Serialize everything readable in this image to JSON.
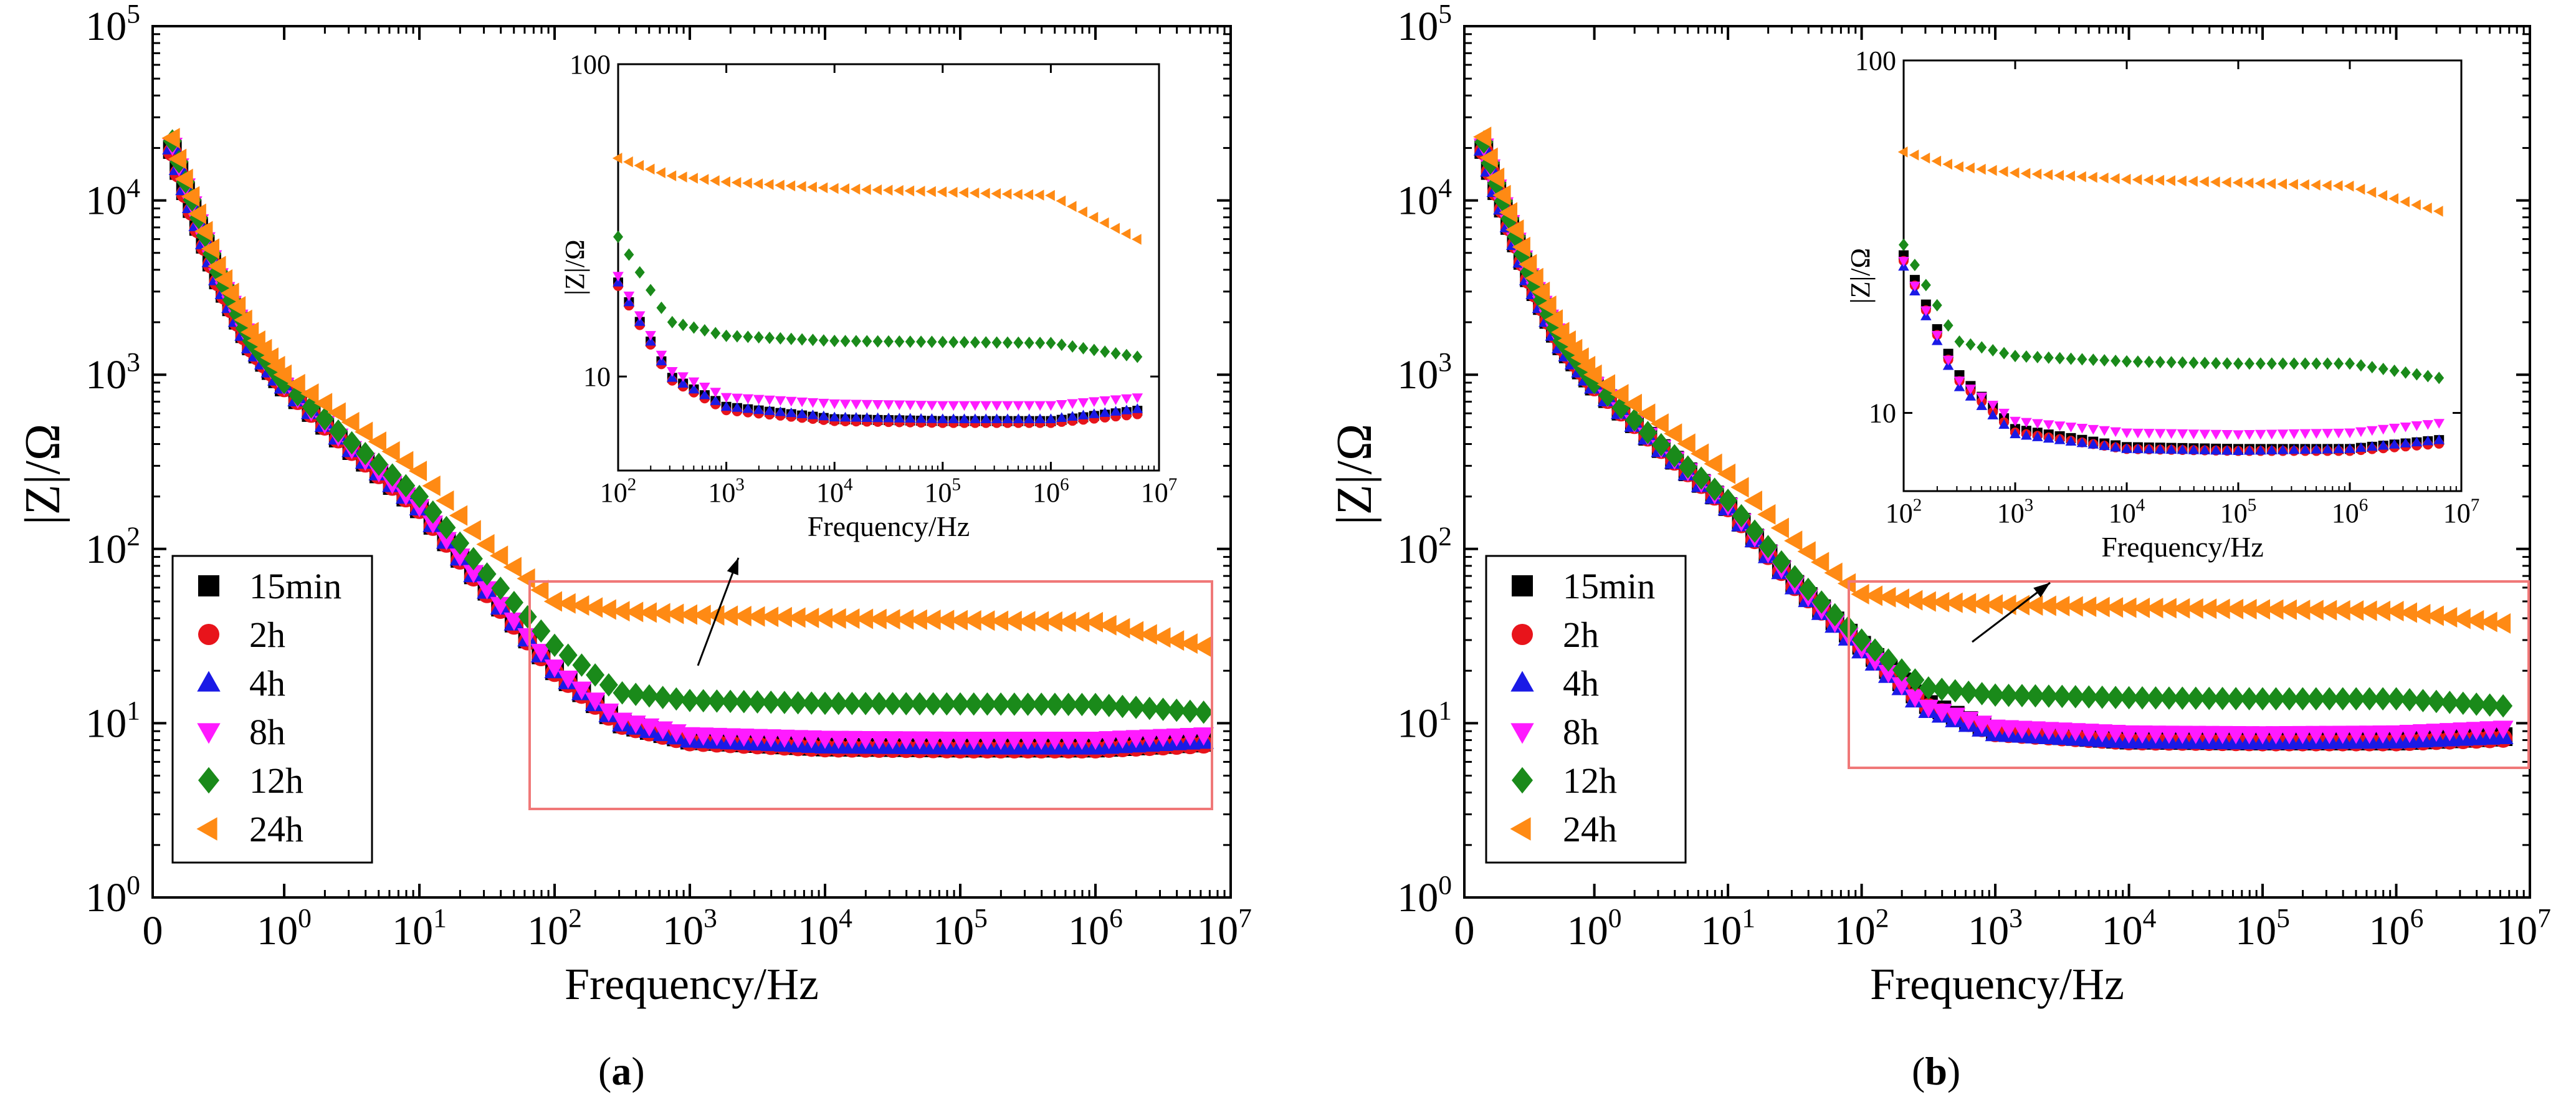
{
  "chart_data": [
    {
      "panel_label": "a",
      "type": "scatter",
      "xlabel": "Frequency/Hz",
      "ylabel": "|Z|/Ω",
      "x_ticks": [
        "0",
        "10^0",
        "10^1",
        "10^2",
        "10^3",
        "10^4",
        "10^5",
        "10^6",
        "10^7"
      ],
      "y_ticks": [
        "10^0",
        "10^1",
        "10^2",
        "10^3",
        "10^4",
        "10^5"
      ],
      "ylim": [
        1,
        100000
      ],
      "yscale": "log",
      "xscale": "log (with 0 at origin)",
      "legend_position": "bottom-left",
      "series": [
        {
          "name": "15min",
          "color": "#000000",
          "marker": "square",
          "points": [
            [
              0.01,
              45000
            ],
            [
              0.03,
              12000
            ],
            [
              0.1,
              3500
            ],
            [
              0.3,
              1500
            ],
            [
              1,
              850
            ],
            [
              3,
              380
            ],
            [
              10,
              170
            ],
            [
              30,
              60
            ],
            [
              100,
              20
            ],
            [
              300,
              10
            ],
            [
              1000,
              8
            ],
            [
              10000,
              7.3
            ],
            [
              100000,
              7.2
            ],
            [
              1000000,
              7.2
            ],
            [
              7000000,
              7.8
            ]
          ]
        },
        {
          "name": "2h",
          "color": "#e8141b",
          "marker": "circle",
          "points": [
            [
              0.01,
              44000
            ],
            [
              0.03,
              11500
            ],
            [
              0.1,
              3400
            ],
            [
              0.3,
              1450
            ],
            [
              1,
              840
            ],
            [
              3,
              375
            ],
            [
              10,
              168
            ],
            [
              30,
              58
            ],
            [
              100,
              19.5
            ],
            [
              300,
              9.8
            ],
            [
              1000,
              7.8
            ],
            [
              10000,
              7.2
            ],
            [
              100000,
              7.1
            ],
            [
              1000000,
              7.1
            ],
            [
              7000000,
              7.6
            ]
          ]
        },
        {
          "name": "4h",
          "color": "#1a1ae6",
          "marker": "triangle-up",
          "points": [
            [
              0.01,
              46000
            ],
            [
              0.03,
              12500
            ],
            [
              0.1,
              3600
            ],
            [
              0.3,
              1500
            ],
            [
              1,
              860
            ],
            [
              3,
              385
            ],
            [
              10,
              172
            ],
            [
              30,
              60
            ],
            [
              100,
              20
            ],
            [
              300,
              10
            ],
            [
              1000,
              8
            ],
            [
              10000,
              7.4
            ],
            [
              100000,
              7.3
            ],
            [
              1000000,
              7.3
            ],
            [
              7000000,
              7.9
            ]
          ]
        },
        {
          "name": "8h",
          "color": "#ff1aff",
          "marker": "triangle-down",
          "points": [
            [
              0.01,
              47000
            ],
            [
              0.03,
              12800
            ],
            [
              0.1,
              3700
            ],
            [
              0.3,
              1550
            ],
            [
              1,
              870
            ],
            [
              3,
              390
            ],
            [
              10,
              175
            ],
            [
              30,
              62
            ],
            [
              100,
              21
            ],
            [
              300,
              10.5
            ],
            [
              1000,
              8.6
            ],
            [
              10000,
              8.2
            ],
            [
              100000,
              8.1
            ],
            [
              1000000,
              8.1
            ],
            [
              7000000,
              8.6
            ]
          ]
        },
        {
          "name": "12h",
          "color": "#1a8a1a",
          "marker": "diamond",
          "points": [
            [
              0.01,
              50000
            ],
            [
              0.03,
              13500
            ],
            [
              0.1,
              3900
            ],
            [
              0.3,
              1600
            ],
            [
              1,
              900
            ],
            [
              3,
              420
            ],
            [
              10,
              200
            ],
            [
              30,
              75
            ],
            [
              100,
              28
            ],
            [
              300,
              15
            ],
            [
              1000,
              13.5
            ],
            [
              10000,
              13
            ],
            [
              100000,
              12.9
            ],
            [
              1000000,
              12.8
            ],
            [
              7000000,
              11.5
            ]
          ]
        },
        {
          "name": "24h",
          "color": "#ff8a14",
          "marker": "triangle-left",
          "points": [
            [
              0.01,
              52000
            ],
            [
              0.03,
              14000
            ],
            [
              0.1,
              4200
            ],
            [
              0.3,
              1800
            ],
            [
              1,
              1000
            ],
            [
              3,
              550
            ],
            [
              10,
              280
            ],
            [
              30,
              110
            ],
            [
              100,
              50
            ],
            [
              300,
              44
            ],
            [
              1000,
              42
            ],
            [
              10000,
              40
            ],
            [
              100000,
              39
            ],
            [
              1000000,
              38
            ],
            [
              7000000,
              27
            ]
          ]
        }
      ],
      "inset": {
        "xlabel": "Frequency/Hz",
        "ylabel": "|Z|/Ω",
        "x_ticks": [
          "10^2",
          "10^3",
          "10^4",
          "10^5",
          "10^6",
          "10^7"
        ],
        "y_ticks": [
          "10",
          "100"
        ],
        "xlim": [
          100,
          10000000
        ],
        "ylim": [
          5,
          100
        ]
      }
    },
    {
      "panel_label": "b",
      "type": "scatter",
      "xlabel": "Frequency/Hz",
      "ylabel": "|Z|/Ω",
      "x_ticks": [
        "0",
        "10^0",
        "10^1",
        "10^2",
        "10^3",
        "10^4",
        "10^5",
        "10^6",
        "10^7"
      ],
      "y_ticks": [
        "10^0",
        "10^1",
        "10^2",
        "10^3",
        "10^4",
        "10^5"
      ],
      "ylim": [
        1,
        100000
      ],
      "yscale": "log",
      "xscale": "log (with 0 at origin)",
      "legend_position": "bottom-left",
      "series": [
        {
          "name": "15min",
          "color": "#000000",
          "marker": "square",
          "points": [
            [
              0.01,
              45000
            ],
            [
              0.03,
              12000
            ],
            [
              0.1,
              3600
            ],
            [
              0.3,
              1500
            ],
            [
              1,
              860
            ],
            [
              3,
              390
            ],
            [
              10,
              175
            ],
            [
              30,
              65
            ],
            [
              100,
              28
            ],
            [
              300,
              13
            ],
            [
              1000,
              9
            ],
            [
              10000,
              8
            ],
            [
              100000,
              7.9
            ],
            [
              1000000,
              7.9
            ],
            [
              7000000,
              8.4
            ]
          ]
        },
        {
          "name": "2h",
          "color": "#e8141b",
          "marker": "circle",
          "points": [
            [
              0.01,
              44000
            ],
            [
              0.03,
              11800
            ],
            [
              0.1,
              3500
            ],
            [
              0.3,
              1480
            ],
            [
              1,
              850
            ],
            [
              3,
              385
            ],
            [
              10,
              172
            ],
            [
              30,
              63
            ],
            [
              100,
              27
            ],
            [
              300,
              12.5
            ],
            [
              1000,
              8.8
            ],
            [
              10000,
              7.9
            ],
            [
              100000,
              7.8
            ],
            [
              1000000,
              7.8
            ],
            [
              7000000,
              8.2
            ]
          ]
        },
        {
          "name": "4h",
          "color": "#1a1ae6",
          "marker": "triangle-up",
          "points": [
            [
              0.01,
              46000
            ],
            [
              0.03,
              12200
            ],
            [
              0.1,
              3600
            ],
            [
              0.3,
              1500
            ],
            [
              1,
              860
            ],
            [
              3,
              385
            ],
            [
              10,
              172
            ],
            [
              30,
              63
            ],
            [
              100,
              26
            ],
            [
              300,
              12
            ],
            [
              1000,
              8.7
            ],
            [
              10000,
              7.9
            ],
            [
              100000,
              7.8
            ],
            [
              1000000,
              7.9
            ],
            [
              7000000,
              8.4
            ]
          ]
        },
        {
          "name": "8h",
          "color": "#ff1aff",
          "marker": "triangle-down",
          "points": [
            [
              0.01,
              47000
            ],
            [
              0.03,
              12600
            ],
            [
              0.1,
              3700
            ],
            [
              0.3,
              1550
            ],
            [
              1,
              880
            ],
            [
              3,
              395
            ],
            [
              10,
              178
            ],
            [
              30,
              66
            ],
            [
              100,
              27
            ],
            [
              300,
              12.5
            ],
            [
              1000,
              9.5
            ],
            [
              10000,
              8.8
            ],
            [
              100000,
              8.7
            ],
            [
              1000000,
              8.8
            ],
            [
              7000000,
              9.4
            ]
          ]
        },
        {
          "name": "12h",
          "color": "#1a8a1a",
          "marker": "diamond",
          "points": [
            [
              0.01,
              50000
            ],
            [
              0.03,
              13200
            ],
            [
              0.1,
              3900
            ],
            [
              0.3,
              1600
            ],
            [
              1,
              900
            ],
            [
              3,
              410
            ],
            [
              10,
              190
            ],
            [
              30,
              72
            ],
            [
              100,
              30
            ],
            [
              300,
              16
            ],
            [
              1000,
              14.5
            ],
            [
              10000,
              14
            ],
            [
              100000,
              13.8
            ],
            [
              1000000,
              13.8
            ],
            [
              7000000,
              12.5
            ]
          ]
        },
        {
          "name": "24h",
          "color": "#ff8a14",
          "marker": "triangle-left",
          "points": [
            [
              0.01,
              53000
            ],
            [
              0.03,
              14200
            ],
            [
              0.1,
              4300
            ],
            [
              0.3,
              1800
            ],
            [
              1,
              1000
            ],
            [
              3,
              540
            ],
            [
              10,
              270
            ],
            [
              30,
              115
            ],
            [
              100,
              55
            ],
            [
              300,
              50
            ],
            [
              1000,
              48
            ],
            [
              10000,
              46
            ],
            [
              100000,
              45
            ],
            [
              1000000,
              44
            ],
            [
              7000000,
              37
            ]
          ]
        }
      ],
      "inset": {
        "xlabel": "Frequency/Hz",
        "ylabel": "|Z|/Ω",
        "x_ticks": [
          "10^2",
          "10^3",
          "10^4",
          "10^5",
          "10^6",
          "10^7"
        ],
        "y_ticks": [
          "10",
          "100"
        ],
        "xlim": [
          100,
          10000000
        ],
        "ylim": [
          6,
          100
        ]
      }
    }
  ],
  "captions": [
    "(a)",
    "(b)"
  ]
}
